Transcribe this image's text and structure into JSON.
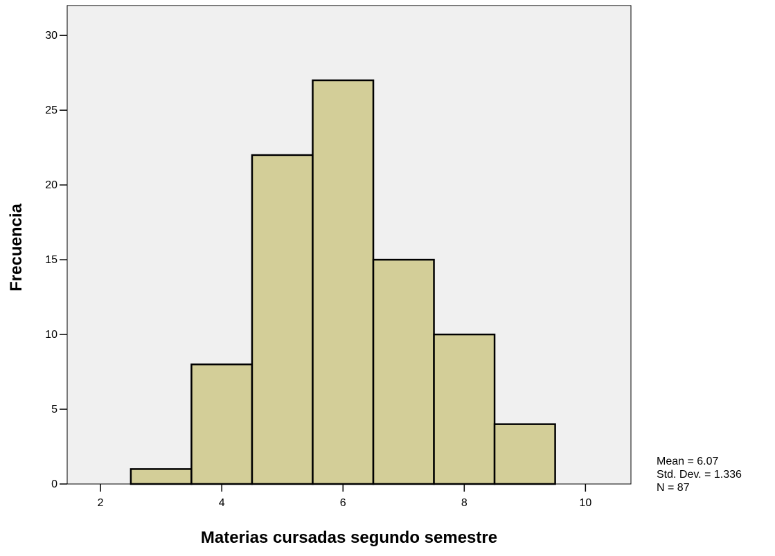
{
  "chart_data": {
    "type": "bar",
    "subtype": "histogram",
    "bins": [
      {
        "from": 2.5,
        "to": 3.5,
        "count": 1
      },
      {
        "from": 3.5,
        "to": 4.5,
        "count": 8
      },
      {
        "from": 4.5,
        "to": 5.5,
        "count": 22
      },
      {
        "from": 5.5,
        "to": 6.5,
        "count": 27
      },
      {
        "from": 6.5,
        "to": 7.5,
        "count": 15
      },
      {
        "from": 7.5,
        "to": 8.5,
        "count": 10
      },
      {
        "from": 8.5,
        "to": 9.5,
        "count": 4
      }
    ],
    "xlabel": "Materias cursadas segundo semestre",
    "ylabel": "Frecuencia",
    "xlim": [
      1.45,
      10.75
    ],
    "ylim": [
      0,
      32
    ],
    "xticks": [
      2,
      4,
      6,
      8,
      10
    ],
    "yticks": [
      0,
      5,
      10,
      15,
      20,
      25,
      30
    ],
    "grid": false,
    "colors": {
      "bar_fill": "#d3ce98",
      "bar_stroke": "#000000",
      "plot_background": "#f0f0f0"
    }
  },
  "stats": {
    "mean": "Mean = 6.07",
    "std_dev": "Std. Dev. = 1.336",
    "n": "N = 87"
  }
}
